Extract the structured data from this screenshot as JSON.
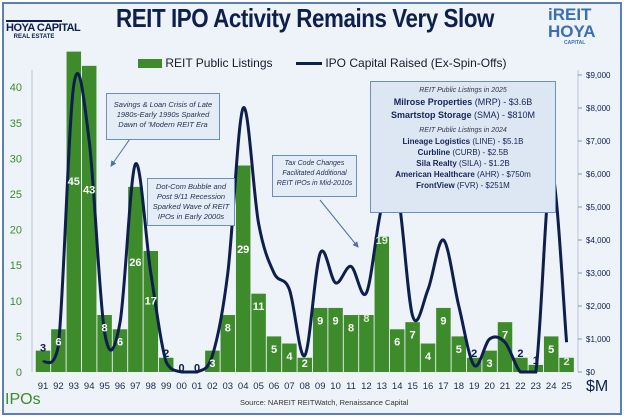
{
  "title": "REIT IPO Activity Remains Very Slow",
  "logos": {
    "left": {
      "line1": "HOYA CAPITAL",
      "line2": "REAL ESTATE"
    },
    "right": {
      "line1": "iREIT",
      "line2": "HOYA",
      "line3": "CAPITAL"
    }
  },
  "legend": {
    "bars": "REIT Public Listings",
    "line": "IPO Capital Raised (Ex-Spin-Offs)"
  },
  "colors": {
    "bars": "#3d8b2b",
    "line": "#0e1f4d",
    "title": "#0e1f4d"
  },
  "annotations": {
    "savings_loan": "Savings & Loan Crisis of Late 1980s-Early 1990s Sparked Dawn of 'Modern REIT Era",
    "dotcom": "Dot-Com Bubble and Post 9/11 Recession Sparked Wave of REIT IPOs in Early 2000s",
    "tax_code": "Tax Code Changes Facilitated Additional REIT IPOs in Mid-2010s"
  },
  "listings_box": {
    "h2025": "REIT Public Listings in 2025",
    "items2025": [
      {
        "name": "Milrose Properties",
        "rest": " (MRP) - $3.6B"
      },
      {
        "name": "Smartstop Storage",
        "rest": " (SMA) - $810M"
      }
    ],
    "h2024": "REIT Public Listings in 2024",
    "items2024": [
      {
        "name": "Lineage Logistics",
        "rest": " (LINE) - $5.1B"
      },
      {
        "name": "Curbline",
        "rest": " (CURB) - $2.5B"
      },
      {
        "name": "Sila Realty",
        "rest": " (SILA) - $1.2B"
      },
      {
        "name": "American Healthcare",
        "rest": "  (AHR) - $750m"
      },
      {
        "name": "FrontView",
        "rest": " (FVR) - $251M"
      }
    ]
  },
  "source": "Source: NAREIT REITWatch, Renaissance Capital",
  "chart_data": {
    "type": "bar+line",
    "title": "REIT IPO Activity Remains Very Slow",
    "categories": [
      "91",
      "92",
      "93",
      "94",
      "95",
      "96",
      "97",
      "98",
      "99",
      "00",
      "01",
      "02",
      "03",
      "04",
      "05",
      "06",
      "07",
      "08",
      "09",
      "10",
      "11",
      "12",
      "13",
      "14",
      "15",
      "16",
      "17",
      "18",
      "19",
      "20",
      "21",
      "22",
      "23",
      "24",
      "25"
    ],
    "series": [
      {
        "name": "REIT Public Listings",
        "type": "bar",
        "axis": "left",
        "values": [
          3,
          6,
          45,
          43,
          8,
          6,
          26,
          17,
          2,
          0,
          0,
          3,
          8,
          29,
          11,
          5,
          4,
          2,
          9,
          9,
          8,
          8,
          19,
          6,
          7,
          4,
          9,
          5,
          2,
          3,
          7,
          2,
          1,
          5,
          2
        ]
      },
      {
        "name": "IPO Capital Raised (Ex-Spin-Offs)",
        "type": "line",
        "axis": "right",
        "values": [
          300,
          800,
          8700,
          7000,
          1200,
          1500,
          6300,
          3000,
          300,
          0,
          0,
          500,
          3000,
          8000,
          4500,
          3000,
          2500,
          500,
          3600,
          2700,
          3200,
          2400,
          5000,
          5500,
          1700,
          2500,
          4000,
          2000,
          200,
          1000,
          900,
          0,
          0,
          6100,
          900
        ]
      }
    ],
    "left_axis": {
      "label": "IPOs",
      "ylim": [
        0,
        45
      ],
      "ticks": [
        0,
        5,
        10,
        15,
        20,
        25,
        30,
        35,
        40
      ]
    },
    "right_axis": {
      "label": "$M",
      "ylim": [
        0,
        9500
      ],
      "ticks": [
        "$0",
        "$1,000",
        "$2,000",
        "$3,000",
        "$4,000",
        "$5,000",
        "$6,000",
        "$7,000",
        "$8,000",
        "$9,000"
      ]
    },
    "grid": false,
    "legend_position": "top"
  }
}
